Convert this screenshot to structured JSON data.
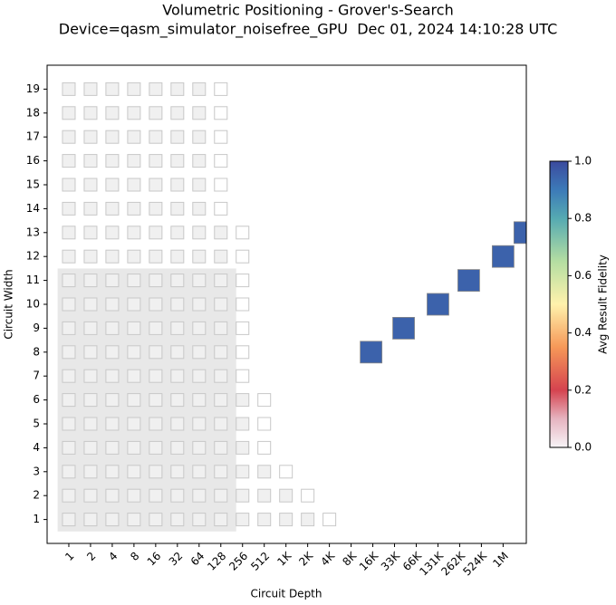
{
  "chart_data": {
    "type": "volumetric",
    "title": "Volumetric Positioning - Grover's-Search",
    "subtitle": "Device=qasm_simulator_noisefree_GPU  Dec 01, 2024 14:10:28 UTC",
    "x_label": "Circuit Depth",
    "y_label": "Circuit Width",
    "x_log_base": 2,
    "xlim": [
      0.5,
      2200000
    ],
    "ylim": [
      0,
      20
    ],
    "xticks": [
      1,
      2,
      4,
      8,
      16,
      32,
      64,
      128,
      256,
      512,
      {
        "value": 1024,
        "label": "1K"
      },
      {
        "value": 2048,
        "label": "2K"
      },
      {
        "value": 4096,
        "label": "4K"
      },
      {
        "value": 8192,
        "label": "8K"
      },
      {
        "value": 16384,
        "label": "16K"
      },
      {
        "value": 32768,
        "label": "33K"
      },
      {
        "value": 65536,
        "label": "66K"
      },
      {
        "value": 131072,
        "label": "131K"
      },
      {
        "value": 262144,
        "label": "262K"
      },
      {
        "value": 524288,
        "label": "524K"
      },
      {
        "value": 1048576,
        "label": "1M"
      }
    ],
    "yticks": [
      1,
      2,
      3,
      4,
      5,
      6,
      7,
      8,
      9,
      10,
      11,
      12,
      13,
      14,
      15,
      16,
      17,
      18,
      19
    ],
    "qv_region": {
      "x": [
        0.7,
        209
      ],
      "y": [
        0.5,
        11.5
      ],
      "color": "#e8e8e8"
    },
    "volume_columns": [
      {
        "x": 1,
        "filled": 19,
        "outlined": 19
      },
      {
        "x": 2,
        "filled": 19,
        "outlined": 19
      },
      {
        "x": 4,
        "filled": 19,
        "outlined": 19
      },
      {
        "x": 8,
        "filled": 19,
        "outlined": 19
      },
      {
        "x": 16,
        "filled": 19,
        "outlined": 19
      },
      {
        "x": 32,
        "filled": 19,
        "outlined": 19
      },
      {
        "x": 64,
        "filled": 19,
        "outlined": 19
      },
      {
        "x": 128,
        "filled": 13,
        "outlined": 19
      },
      {
        "x": 256,
        "filled": 6,
        "outlined": 13
      },
      {
        "x": 512,
        "filled": 3,
        "outlined": 6
      },
      {
        "x": 1024,
        "filled": 2,
        "outlined": 3
      },
      {
        "x": 2048,
        "filled": 1,
        "outlined": 2
      },
      {
        "x": 4096,
        "filled": 0,
        "outlined": 1
      }
    ],
    "cell_fill": "#f0f0f0",
    "cell_stroke": "#c8c8c8",
    "points": {
      "x": [
        15500,
        43800,
        131072,
        350000,
        1048576,
        2097152
      ],
      "y": [
        8,
        9,
        10,
        11,
        12,
        13
      ],
      "values": [
        0.95,
        0.95,
        0.95,
        0.95,
        0.95,
        0.95
      ]
    },
    "colorbar": {
      "label": "Avg Result Fidelity",
      "lim": [
        0,
        1
      ],
      "ticks": [
        {
          "value": 0,
          "label": "0.0"
        },
        {
          "value": 0.2,
          "label": "0.2"
        },
        {
          "value": 0.4,
          "label": "0.4"
        },
        {
          "value": 0.6,
          "label": "0.6"
        },
        {
          "value": 0.8,
          "label": "0.8"
        },
        {
          "value": 1,
          "label": "1.0"
        }
      ],
      "colorscale": [
        [
          0,
          "#f7f4f7"
        ],
        [
          0.1,
          "#e6b4c0"
        ],
        [
          0.2,
          "#d5434f"
        ],
        [
          0.35,
          "#f69858"
        ],
        [
          0.5,
          "#fff2ac"
        ],
        [
          0.65,
          "#b4dea2"
        ],
        [
          0.8,
          "#55aab2"
        ],
        [
          0.9,
          "#3c7ab8"
        ],
        [
          1,
          "#3b4a9e"
        ]
      ]
    }
  }
}
